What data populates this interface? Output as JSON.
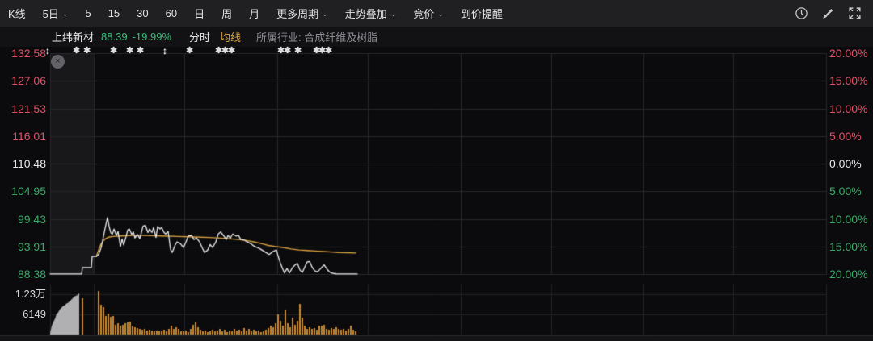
{
  "toolbar": {
    "items": [
      {
        "label": "K线",
        "caret": false
      },
      {
        "label": "5日",
        "caret": true
      },
      {
        "label": "5",
        "caret": false
      },
      {
        "label": "15",
        "caret": false
      },
      {
        "label": "30",
        "caret": false
      },
      {
        "label": "60",
        "caret": false
      },
      {
        "label": "日",
        "caret": false
      },
      {
        "label": "周",
        "caret": false
      },
      {
        "label": "月",
        "caret": false
      },
      {
        "label": "更多周期",
        "caret": true
      },
      {
        "label": "走势叠加",
        "caret": true
      },
      {
        "label": "竞价",
        "caret": true
      },
      {
        "label": "到价提醒",
        "caret": false
      }
    ],
    "icons": [
      "alert-clock-icon",
      "brush-icon",
      "fullscreen-icon"
    ]
  },
  "infobar": {
    "stock_name": "上纬新材",
    "price": "88.39",
    "change_pct": "-19.99%",
    "mode_label": "分时",
    "ma_label": "均线",
    "industry_label": "所属行业: 合成纤维及树脂"
  },
  "close_button": {
    "glyph": "×"
  },
  "colors": {
    "red": "#dd5066",
    "green": "#39a967",
    "white": "#e8e8ea",
    "orange": "#d8a040",
    "price_line": "#ebebeb",
    "vol_bar": "#c9892f",
    "auction_gray": "#b0b0b3",
    "grid": "#27272b",
    "grid_dim": "#222226",
    "auction_bg": "#18181b",
    "chart_bg": "#0b0b0d",
    "bottom_strip": "#141416"
  },
  "markers": [
    {
      "x": 62,
      "type": "updown"
    },
    {
      "x": 96,
      "type": "star"
    },
    {
      "x": 109,
      "type": "star"
    },
    {
      "x": 142,
      "type": "star"
    },
    {
      "x": 162,
      "type": "star"
    },
    {
      "x": 175,
      "type": "star"
    },
    {
      "x": 207,
      "type": "updown"
    },
    {
      "x": 236,
      "type": "star"
    },
    {
      "x": 272,
      "type": "star"
    },
    {
      "x": 280,
      "type": "star"
    },
    {
      "x": 288,
      "type": "star"
    },
    {
      "x": 349,
      "type": "star"
    },
    {
      "x": 357,
      "type": "star"
    },
    {
      "x": 370,
      "type": "star"
    },
    {
      "x": 393,
      "type": "star"
    },
    {
      "x": 400,
      "type": "star"
    },
    {
      "x": 408,
      "type": "star"
    }
  ],
  "chart_data": {
    "type": "line",
    "title": "上纬新材 分时走势",
    "prev_close": 110.48,
    "current_price": 88.39,
    "change_pct": -19.99,
    "ylim": [
      88.38,
      132.58
    ],
    "pct_lim": [
      -20,
      20
    ],
    "x_range": [
      62,
      1022
    ],
    "x_gridlines": [
      116,
      228,
      343,
      455,
      570,
      682,
      796,
      907
    ],
    "left_axis": {
      "labels": [
        "132.58",
        "127.06",
        "121.53",
        "116.01",
        "110.48",
        "104.95",
        "99.43",
        "93.91",
        "88.38"
      ],
      "colors": [
        "red",
        "red",
        "red",
        "red",
        "white",
        "green",
        "green",
        "green",
        "green"
      ]
    },
    "right_axis": {
      "labels": [
        "20.00%",
        "15.00%",
        "10.00%",
        "5.00%",
        "0.00%",
        "5.00%",
        "10.00%",
        "15.00%",
        "20.00%"
      ],
      "colors": [
        "red",
        "red",
        "red",
        "red",
        "white",
        "green",
        "green",
        "green",
        "green"
      ]
    },
    "volume_axis": {
      "labels": [
        "1.23万",
        "6149"
      ],
      "values": [
        12300,
        6149
      ]
    },
    "price_series": [
      [
        62,
        88.4
      ],
      [
        101,
        88.4
      ],
      [
        102,
        89.7
      ],
      [
        113,
        89.7
      ],
      [
        114,
        91.9
      ],
      [
        119,
        91.9
      ],
      [
        122,
        92.3
      ],
      [
        125,
        93.6
      ],
      [
        127,
        95.1
      ],
      [
        130,
        97.5
      ],
      [
        133,
        99.7
      ],
      [
        135,
        97.9
      ],
      [
        137,
        96.7
      ],
      [
        139,
        96.4
      ],
      [
        141,
        97.4
      ],
      [
        144,
        96.1
      ],
      [
        146,
        96.9
      ],
      [
        149,
        93.9
      ],
      [
        151,
        95.4
      ],
      [
        153,
        94.2
      ],
      [
        156,
        95.9
      ],
      [
        158,
        97.2
      ],
      [
        160,
        97.4
      ],
      [
        163,
        96.3
      ],
      [
        165,
        96.8
      ],
      [
        167,
        95.6
      ],
      [
        170,
        96.3
      ],
      [
        173,
        95.5
      ],
      [
        177,
        98.0
      ],
      [
        180,
        98.1
      ],
      [
        183,
        96.7
      ],
      [
        185,
        97.4
      ],
      [
        188,
        96.7
      ],
      [
        190,
        97.7
      ],
      [
        193,
        95.7
      ],
      [
        195,
        97.9
      ],
      [
        198,
        97.4
      ],
      [
        200,
        97.7
      ],
      [
        203,
        96.7
      ],
      [
        205,
        96.4
      ],
      [
        208,
        96.9
      ],
      [
        211,
        93.3
      ],
      [
        213,
        92.7
      ],
      [
        217,
        94.3
      ],
      [
        219,
        94.8
      ],
      [
        223,
        94.5
      ],
      [
        227,
        93.7
      ],
      [
        230,
        94.8
      ],
      [
        233,
        96.0
      ],
      [
        237,
        96.1
      ],
      [
        240,
        95.3
      ],
      [
        243,
        95.6
      ],
      [
        247,
        94.8
      ],
      [
        250,
        93.7
      ],
      [
        253,
        92.7
      ],
      [
        257,
        93.2
      ],
      [
        260,
        94.3
      ],
      [
        263,
        93.7
      ],
      [
        267,
        94.8
      ],
      [
        270,
        96.4
      ],
      [
        273,
        96.8
      ],
      [
        277,
        96.0
      ],
      [
        280,
        95.3
      ],
      [
        282,
        96.1
      ],
      [
        285,
        95.6
      ],
      [
        288,
        96.4
      ],
      [
        292,
        96.0
      ],
      [
        295,
        96.1
      ],
      [
        298,
        95.3
      ],
      [
        302,
        95.2
      ],
      [
        306,
        94.8
      ],
      [
        310,
        94.5
      ],
      [
        314,
        94.0
      ],
      [
        318,
        93.7
      ],
      [
        322,
        93.4
      ],
      [
        326,
        93.0
      ],
      [
        330,
        92.6
      ],
      [
        333,
        92.3
      ],
      [
        336,
        92.7
      ],
      [
        339,
        93.0
      ],
      [
        342,
        93.2
      ],
      [
        344,
        92.0
      ],
      [
        347,
        90.5
      ],
      [
        350,
        89.3
      ],
      [
        352,
        88.6
      ],
      [
        355,
        89.5
      ],
      [
        358,
        88.6
      ],
      [
        362,
        89.7
      ],
      [
        365,
        90.2
      ],
      [
        368,
        90.5
      ],
      [
        371,
        89.2
      ],
      [
        374,
        88.7
      ],
      [
        377,
        89.8
      ],
      [
        380,
        90.8
      ],
      [
        383,
        90.9
      ],
      [
        386,
        89.8
      ],
      [
        389,
        89.1
      ],
      [
        392,
        88.8
      ],
      [
        395,
        89.2
      ],
      [
        398,
        89.7
      ],
      [
        401,
        90.2
      ],
      [
        404,
        89.5
      ],
      [
        407,
        88.9
      ],
      [
        410,
        88.6
      ],
      [
        413,
        88.5
      ],
      [
        416,
        88.42
      ],
      [
        442,
        88.4
      ]
    ],
    "ma_series": [
      [
        119,
        91.9
      ],
      [
        122,
        93.2
      ],
      [
        125,
        94.4
      ],
      [
        128,
        95.1
      ],
      [
        131,
        95.5
      ],
      [
        135,
        95.8
      ],
      [
        140,
        95.9
      ],
      [
        150,
        96.0
      ],
      [
        165,
        96.1
      ],
      [
        180,
        96.1
      ],
      [
        200,
        96.0
      ],
      [
        220,
        95.9
      ],
      [
        240,
        95.8
      ],
      [
        260,
        95.7
      ],
      [
        280,
        95.5
      ],
      [
        295,
        95.3
      ],
      [
        305,
        95.1
      ],
      [
        315,
        94.8
      ],
      [
        325,
        94.4
      ],
      [
        332,
        94.1
      ],
      [
        340,
        93.9
      ],
      [
        350,
        93.7
      ],
      [
        360,
        93.4
      ],
      [
        370,
        93.2
      ],
      [
        380,
        93.1
      ],
      [
        390,
        93.0
      ],
      [
        400,
        92.9
      ],
      [
        410,
        92.8
      ],
      [
        420,
        92.7
      ],
      [
        430,
        92.65
      ],
      [
        440,
        92.6
      ]
    ],
    "auction_volume_profile": [
      [
        62,
        500
      ],
      [
        64,
        2650
      ],
      [
        66,
        3850
      ],
      [
        68,
        4800
      ],
      [
        70,
        6250
      ],
      [
        72,
        6750
      ],
      [
        74,
        7700
      ],
      [
        76,
        8200
      ],
      [
        78,
        8700
      ],
      [
        80,
        8900
      ],
      [
        82,
        9400
      ],
      [
        84,
        9650
      ],
      [
        86,
        10100
      ],
      [
        88,
        10600
      ],
      [
        90,
        11100
      ],
      [
        92,
        11600
      ],
      [
        94,
        11800
      ],
      [
        96,
        12050
      ],
      [
        97,
        12500
      ],
      [
        98,
        12530
      ]
    ],
    "volume_bars": [
      [
        102,
        11090
      ],
      [
        122,
        13260
      ],
      [
        125,
        9160
      ],
      [
        128,
        8440
      ],
      [
        131,
        5780
      ],
      [
        134,
        6510
      ],
      [
        137,
        5300
      ],
      [
        140,
        5780
      ],
      [
        143,
        2890
      ],
      [
        146,
        3370
      ],
      [
        149,
        2650
      ],
      [
        152,
        2890
      ],
      [
        155,
        3370
      ],
      [
        158,
        3620
      ],
      [
        161,
        3860
      ],
      [
        164,
        2650
      ],
      [
        167,
        2170
      ],
      [
        170,
        1930
      ],
      [
        173,
        1690
      ],
      [
        176,
        1450
      ],
      [
        179,
        1690
      ],
      [
        182,
        1210
      ],
      [
        185,
        1450
      ],
      [
        188,
        1210
      ],
      [
        191,
        960
      ],
      [
        194,
        1210
      ],
      [
        197,
        960
      ],
      [
        200,
        1210
      ],
      [
        203,
        1450
      ],
      [
        206,
        960
      ],
      [
        209,
        1690
      ],
      [
        212,
        2650
      ],
      [
        215,
        1690
      ],
      [
        218,
        2170
      ],
      [
        221,
        1690
      ],
      [
        224,
        960
      ],
      [
        227,
        960
      ],
      [
        230,
        1210
      ],
      [
        233,
        720
      ],
      [
        236,
        1690
      ],
      [
        239,
        2890
      ],
      [
        242,
        3620
      ],
      [
        245,
        2170
      ],
      [
        248,
        1450
      ],
      [
        251,
        960
      ],
      [
        254,
        1210
      ],
      [
        257,
        720
      ],
      [
        260,
        960
      ],
      [
        263,
        1450
      ],
      [
        266,
        960
      ],
      [
        269,
        1210
      ],
      [
        272,
        1690
      ],
      [
        275,
        960
      ],
      [
        278,
        1450
      ],
      [
        281,
        720
      ],
      [
        284,
        1210
      ],
      [
        287,
        960
      ],
      [
        290,
        1690
      ],
      [
        293,
        1210
      ],
      [
        296,
        1450
      ],
      [
        299,
        960
      ],
      [
        302,
        1930
      ],
      [
        305,
        1210
      ],
      [
        308,
        1690
      ],
      [
        311,
        960
      ],
      [
        314,
        1450
      ],
      [
        317,
        960
      ],
      [
        320,
        1210
      ],
      [
        323,
        720
      ],
      [
        326,
        960
      ],
      [
        329,
        1450
      ],
      [
        332,
        1930
      ],
      [
        335,
        2650
      ],
      [
        338,
        2170
      ],
      [
        341,
        3370
      ],
      [
        344,
        6270
      ],
      [
        347,
        4100
      ],
      [
        350,
        2650
      ],
      [
        353,
        7710
      ],
      [
        356,
        3370
      ],
      [
        359,
        2170
      ],
      [
        362,
        5060
      ],
      [
        365,
        2890
      ],
      [
        368,
        4100
      ],
      [
        371,
        9400
      ],
      [
        374,
        5060
      ],
      [
        377,
        2650
      ],
      [
        380,
        1690
      ],
      [
        383,
        2170
      ],
      [
        386,
        1690
      ],
      [
        389,
        1930
      ],
      [
        392,
        1450
      ],
      [
        395,
        2650
      ],
      [
        398,
        2650
      ],
      [
        401,
        2890
      ],
      [
        404,
        1690
      ],
      [
        407,
        1450
      ],
      [
        410,
        1930
      ],
      [
        413,
        1690
      ],
      [
        416,
        2170
      ],
      [
        419,
        1690
      ],
      [
        422,
        1450
      ],
      [
        425,
        1690
      ],
      [
        428,
        1210
      ],
      [
        431,
        1690
      ],
      [
        434,
        2650
      ],
      [
        437,
        1450
      ],
      [
        440,
        960
      ]
    ],
    "legend": [
      "分时",
      "均线"
    ],
    "grid": true
  }
}
